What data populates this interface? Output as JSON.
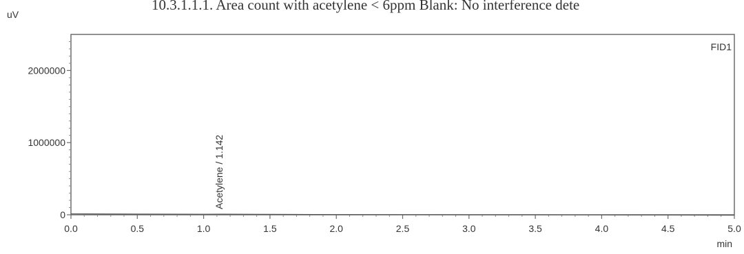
{
  "header_note": "10.3.1.1.1. Area count with acetylene < 6ppm Blank: No interference dete",
  "chart_data": {
    "type": "line",
    "title": "",
    "xlabel": "min",
    "ylabel": "uV",
    "xlim": [
      0.0,
      5.0
    ],
    "ylim": [
      0,
      2500000
    ],
    "x_ticks": [
      0.0,
      0.5,
      1.0,
      1.5,
      2.0,
      2.5,
      3.0,
      3.5,
      4.0,
      4.5,
      5.0
    ],
    "x_tick_labels": [
      "0.0",
      "0.5",
      "1.0",
      "1.5",
      "2.0",
      "2.5",
      "3.0",
      "3.5",
      "4.0",
      "4.5",
      "5.0"
    ],
    "y_ticks": [
      0,
      1000000,
      2000000
    ],
    "y_tick_labels": [
      "0",
      "1000000",
      "2000000"
    ],
    "grid": false,
    "legend": "none",
    "series": [
      {
        "name": "FID1",
        "x": [
          0.0,
          0.5,
          1.0,
          1.142,
          1.5,
          2.0,
          2.5,
          3.0,
          3.5,
          4.0,
          4.5,
          5.0
        ],
        "y": [
          12000,
          10000,
          8000,
          9000,
          6000,
          3000,
          2000,
          0,
          0,
          -2000,
          -4000,
          -6000
        ]
      }
    ],
    "annotations": [
      {
        "x": 1.142,
        "text": "Acetylene / 1.142"
      }
    ]
  }
}
